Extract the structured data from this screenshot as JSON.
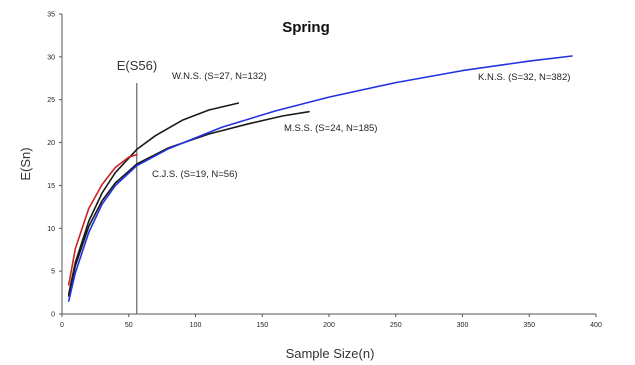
{
  "chart_data": {
    "type": "line",
    "title": "Spring",
    "xlabel": "Sample Size(n)",
    "ylabel": "E(Sn)",
    "xlim": [
      0,
      400
    ],
    "ylim": [
      0,
      35
    ],
    "xticks": [
      0,
      50,
      100,
      150,
      200,
      250,
      300,
      350,
      400
    ],
    "yticks": [
      0,
      5,
      10,
      15,
      20,
      25,
      30,
      35
    ],
    "grid": false,
    "legend": "none",
    "reference_line": {
      "x": 56,
      "label": "E(S56)"
    },
    "series": [
      {
        "color": "#1a1a1a",
        "label": "W.N.S. (S=27, N=132)",
        "x": [
          5,
          10,
          20,
          30,
          40,
          56,
          70,
          90,
          110,
          132
        ],
        "y": [
          2.3,
          6.0,
          10.8,
          14.1,
          16.5,
          19.2,
          20.8,
          22.6,
          23.8,
          24.6
        ]
      },
      {
        "color": "#1a1a1a",
        "label": "M.S.S. (S=24, N=185)",
        "x": [
          5,
          10,
          20,
          30,
          40,
          56,
          80,
          110,
          140,
          165,
          185
        ],
        "y": [
          2.1,
          5.6,
          10.2,
          13.2,
          15.3,
          17.5,
          19.4,
          21.0,
          22.2,
          23.1,
          23.6
        ]
      },
      {
        "color": "#cc2222",
        "label": "C.J.S. (S=19, N=56)",
        "x": [
          5,
          10,
          20,
          30,
          40,
          50,
          56
        ],
        "y": [
          3.4,
          7.6,
          12.3,
          15.1,
          17.1,
          18.3,
          18.6
        ]
      },
      {
        "color": "#2233dd",
        "label": "K.N.S. (S=32, N=382)",
        "x": [
          5,
          10,
          20,
          30,
          40,
          56,
          80,
          120,
          160,
          200,
          250,
          300,
          350,
          382
        ],
        "y": [
          1.5,
          4.8,
          9.5,
          12.8,
          15.0,
          17.3,
          19.3,
          21.8,
          23.7,
          25.3,
          27.0,
          28.4,
          29.5,
          30.1
        ]
      }
    ]
  }
}
